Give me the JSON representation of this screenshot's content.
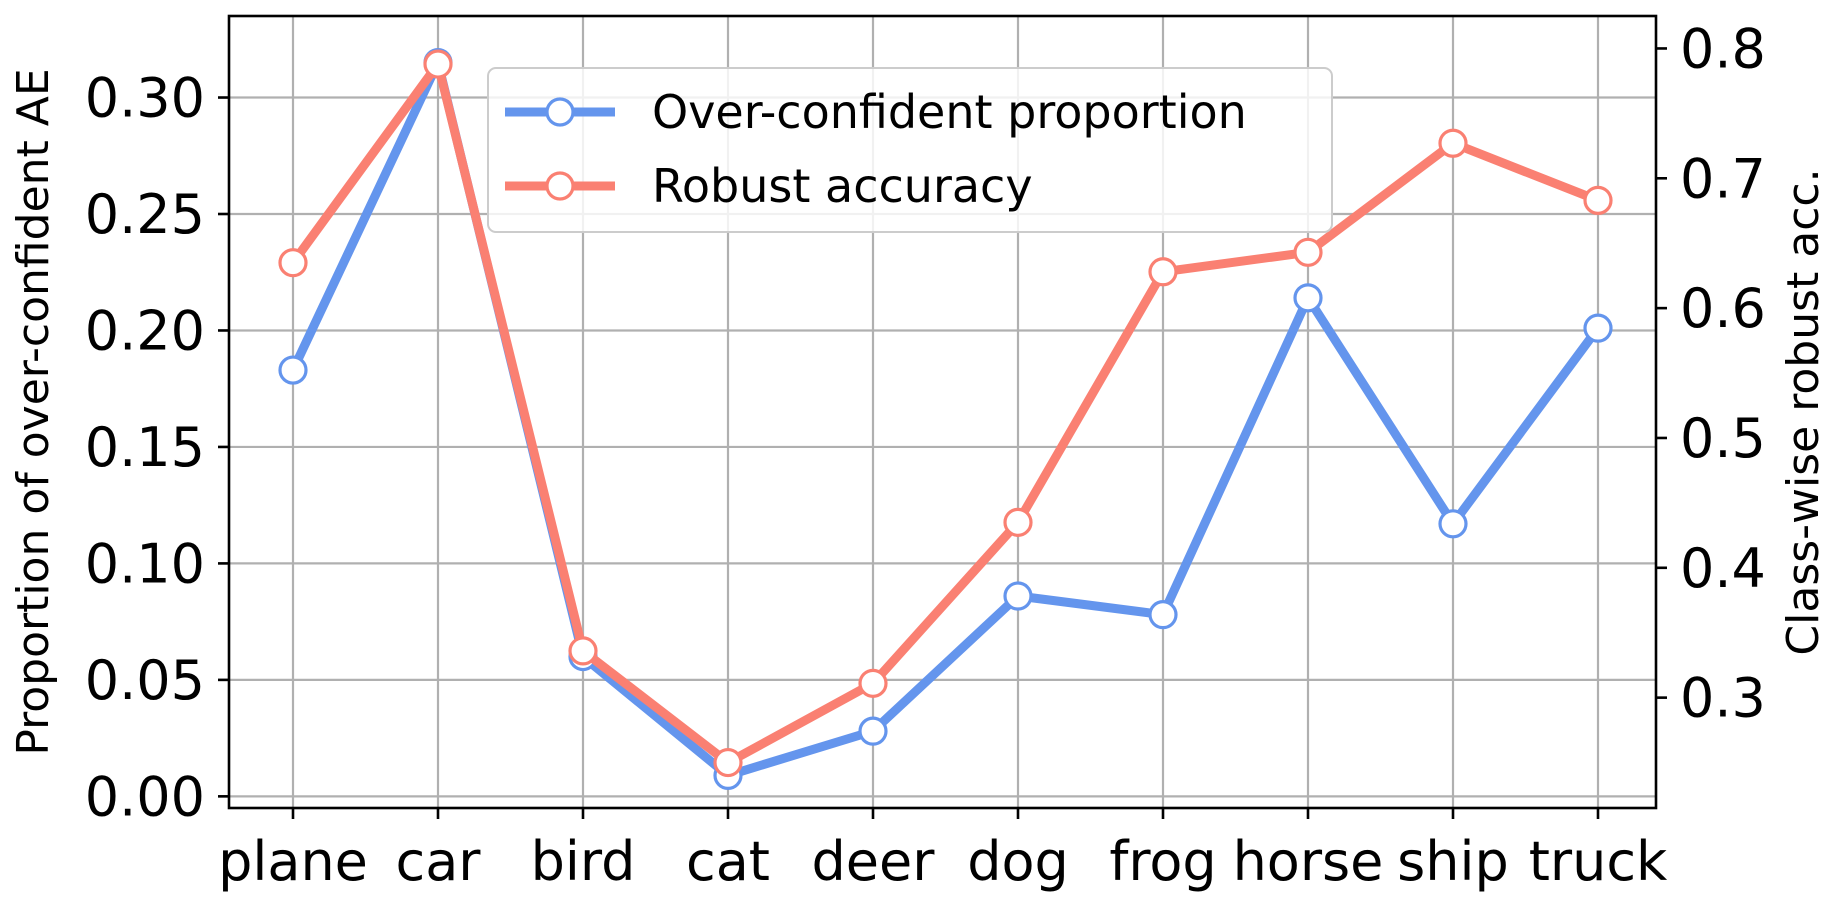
{
  "chart_data": {
    "type": "line",
    "categories": [
      "plane",
      "car",
      "bird",
      "cat",
      "deer",
      "dog",
      "frog",
      "horse",
      "ship",
      "truck"
    ],
    "left_axis": {
      "label": "Proportion of over-confident AE",
      "range": [
        -0.005,
        0.335
      ],
      "ticks": [
        "0.00",
        "0.05",
        "0.10",
        "0.15",
        "0.20",
        "0.25",
        "0.30"
      ]
    },
    "right_axis": {
      "label": "Class-wise robust acc.",
      "range": [
        0.215,
        0.825
      ],
      "ticks": [
        "0.3",
        "0.4",
        "0.5",
        "0.6",
        "0.7",
        "0.8"
      ]
    },
    "series": [
      {
        "name": "Over-confident proportion",
        "axis": "left",
        "color": "#6495ED",
        "values": [
          0.183,
          0.315,
          0.06,
          0.009,
          0.028,
          0.086,
          0.078,
          0.214,
          0.117,
          0.201
        ]
      },
      {
        "name": "Robust accuracy",
        "axis": "right",
        "color": "#FA8072",
        "values": [
          0.635,
          0.788,
          0.336,
          0.25,
          0.311,
          0.435,
          0.628,
          0.643,
          0.727,
          0.683
        ]
      }
    ],
    "grid": true,
    "legend_position": "top-center"
  }
}
